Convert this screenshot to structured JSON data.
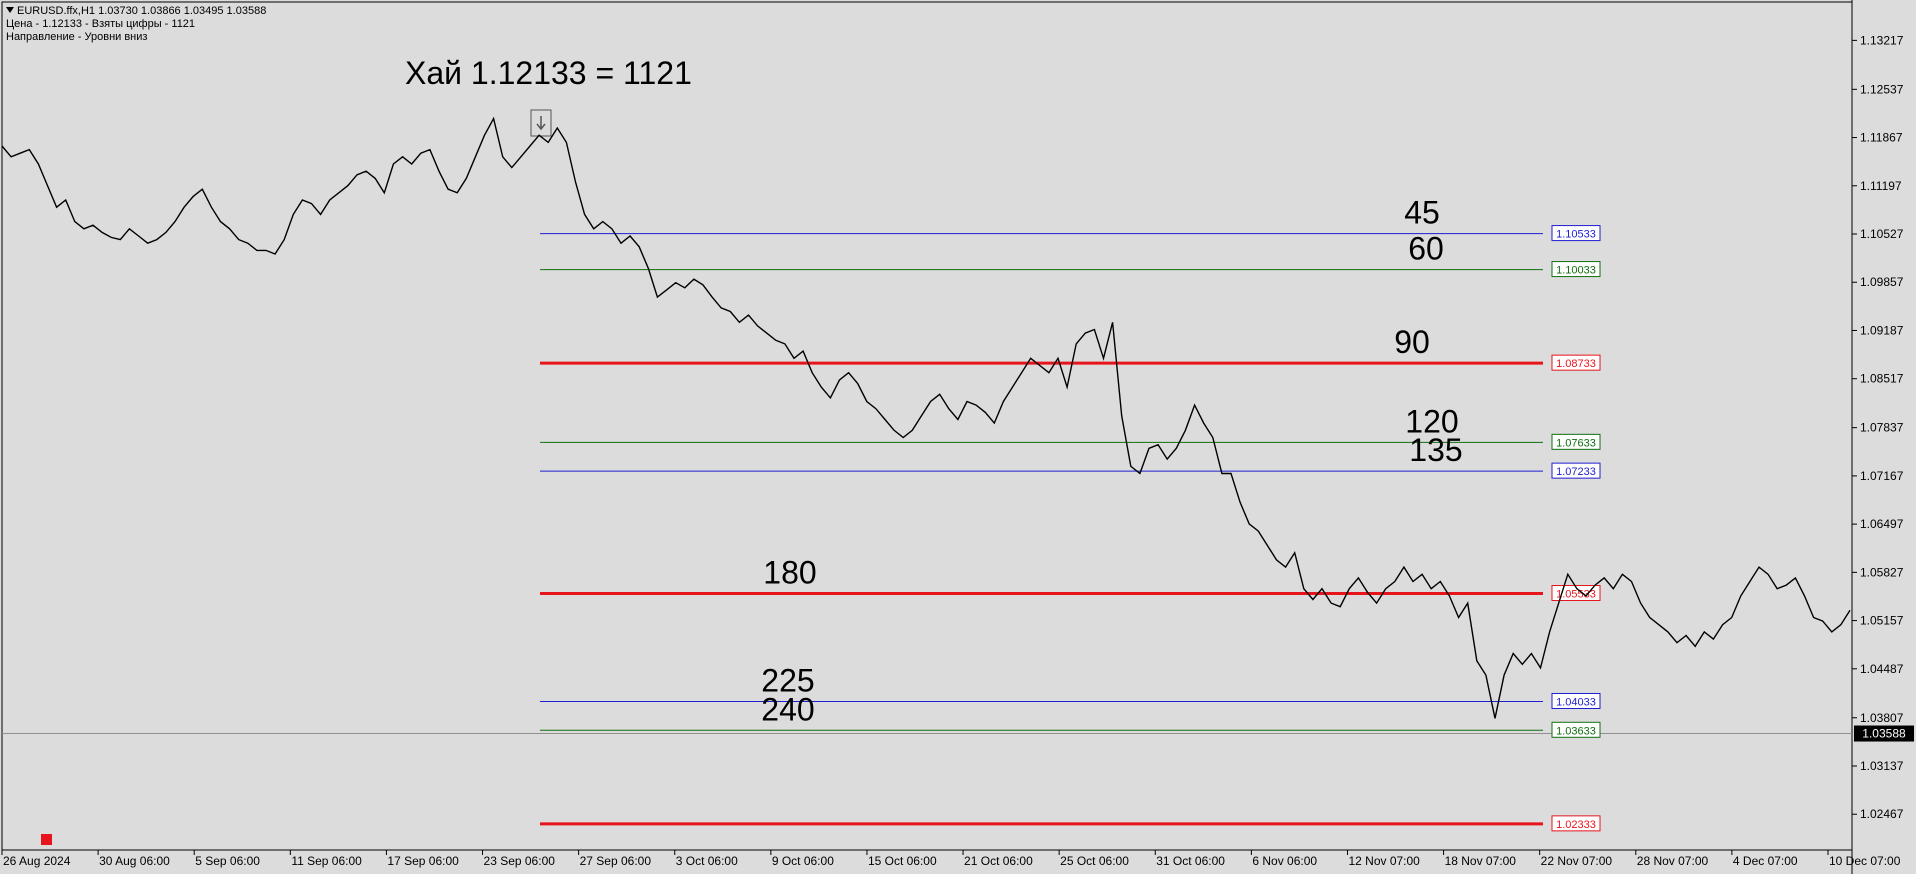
{
  "header": {
    "symbol_line": "EURUSD.ffx,H1  1.03730 1.03866 1.03495 1.03588",
    "line2": "Цена - 1.12133 - Взяты цифры - 1121",
    "line3": "Направление - Уровни вниз"
  },
  "chart_data": {
    "type": "line",
    "title": "Хай 1.12133 = 1121",
    "price_axis_ticks": [
      "1.13217",
      "1.12537",
      "1.11867",
      "1.11197",
      "1.10527",
      "1.09857",
      "1.09187",
      "1.08517",
      "1.07837",
      "1.07167",
      "1.06497",
      "1.05827",
      "1.05157",
      "1.04487",
      "1.03807",
      "1.03137",
      "1.02467"
    ],
    "time_axis_ticks": [
      "26 Aug 2024",
      "30 Aug 06:00",
      "5 Sep 06:00",
      "11 Sep 06:00",
      "17 Sep 06:00",
      "23 Sep 06:00",
      "27 Sep 06:00",
      "3 Oct 06:00",
      "9 Oct 06:00",
      "15 Oct 06:00",
      "21 Oct 06:00",
      "25 Oct 06:00",
      "31 Oct 06:00",
      "6 Nov 06:00",
      "12 Nov 07:00",
      "18 Nov 07:00",
      "22 Nov 07:00",
      "28 Nov 07:00",
      "4 Dec 07:00",
      "10 Dec 07:00"
    ],
    "ylim": [
      1.0197,
      1.1375
    ],
    "current_price": "1.03588",
    "high_price": 1.12133,
    "colors": {
      "background": "#dcdcdc",
      "price": "#000000",
      "red": "#e8141c",
      "green": "#0f6e0f",
      "blue": "#1e1ed2",
      "axis_text": "#000000"
    },
    "levels": [
      {
        "label": "45",
        "price": 1.10533,
        "price_text": "1.10533",
        "color": "blue",
        "width": 1
      },
      {
        "label": "60",
        "price": 1.10033,
        "price_text": "1.10033",
        "color": "green",
        "width": 1
      },
      {
        "label": "90",
        "price": 1.08733,
        "price_text": "1.08733",
        "color": "red",
        "width": 3
      },
      {
        "label": "120",
        "price": 1.07633,
        "price_text": "1.07633",
        "color": "green",
        "width": 1
      },
      {
        "label": "135",
        "price": 1.07233,
        "price_text": "1.07233",
        "color": "blue",
        "width": 1
      },
      {
        "label": "180",
        "price": 1.05533,
        "price_text": "1.05533",
        "color": "red",
        "width": 3
      },
      {
        "label": "225",
        "price": 1.04033,
        "price_text": "1.04033",
        "color": "blue",
        "width": 1
      },
      {
        "label": "240",
        "price": 1.03633,
        "price_text": "1.03633",
        "color": "green",
        "width": 1
      },
      {
        "label": "",
        "price": 1.02333,
        "price_text": "1.02333",
        "color": "red",
        "width": 3
      }
    ],
    "series": [
      {
        "name": "EURUSD.ffx,H1",
        "values": [
          1.1175,
          1.116,
          1.1165,
          1.117,
          1.115,
          1.112,
          1.109,
          1.11,
          1.107,
          1.106,
          1.1065,
          1.1055,
          1.1048,
          1.1045,
          1.106,
          1.105,
          1.104,
          1.1045,
          1.1055,
          1.107,
          1.109,
          1.1105,
          1.1115,
          1.109,
          1.107,
          1.106,
          1.1045,
          1.104,
          1.103,
          1.103,
          1.1025,
          1.1045,
          1.108,
          1.11,
          1.1095,
          1.108,
          1.11,
          1.111,
          1.112,
          1.1135,
          1.114,
          1.113,
          1.111,
          1.115,
          1.116,
          1.115,
          1.1165,
          1.117,
          1.114,
          1.1115,
          1.111,
          1.113,
          1.116,
          1.119,
          1.1213,
          1.116,
          1.1145,
          1.116,
          1.1175,
          1.119,
          1.118,
          1.12,
          1.118,
          1.1125,
          1.108,
          1.106,
          1.107,
          1.106,
          1.104,
          1.105,
          1.1035,
          1.1005,
          1.0965,
          1.0975,
          1.0985,
          1.0978,
          1.099,
          1.0982,
          1.0965,
          1.095,
          1.0945,
          1.093,
          1.094,
          1.0925,
          1.0915,
          1.0905,
          1.09,
          1.088,
          1.089,
          1.086,
          1.084,
          1.0825,
          1.085,
          1.086,
          1.0845,
          1.082,
          1.081,
          1.0795,
          1.078,
          1.077,
          1.078,
          1.08,
          1.082,
          1.083,
          1.081,
          1.0795,
          1.082,
          1.0815,
          1.0805,
          1.079,
          1.082,
          1.084,
          1.086,
          1.088,
          1.087,
          1.086,
          1.088,
          1.084,
          1.09,
          1.0915,
          1.092,
          1.088,
          1.093,
          1.08,
          1.073,
          1.072,
          1.0755,
          1.076,
          1.074,
          1.0755,
          1.078,
          1.0815,
          1.079,
          1.077,
          1.072,
          1.072,
          1.068,
          1.065,
          1.064,
          1.062,
          1.06,
          1.059,
          1.061,
          1.056,
          1.0545,
          1.056,
          1.054,
          1.0535,
          1.056,
          1.0575,
          1.0555,
          1.054,
          1.056,
          1.057,
          1.059,
          1.057,
          1.058,
          1.056,
          1.057,
          1.055,
          1.052,
          1.054,
          1.046,
          1.044,
          1.038,
          1.044,
          1.047,
          1.0455,
          1.047,
          1.045,
          1.05,
          1.054,
          1.058,
          1.056,
          1.055,
          1.0565,
          1.0575,
          1.056,
          1.058,
          1.057,
          1.054,
          1.052,
          1.051,
          1.05,
          1.0485,
          1.0495,
          1.048,
          1.05,
          1.049,
          1.051,
          1.052,
          1.055,
          1.057,
          1.059,
          1.058,
          1.056,
          1.0565,
          1.0575,
          1.055,
          1.052,
          1.0515,
          1.05,
          1.051,
          1.053
        ]
      }
    ]
  }
}
